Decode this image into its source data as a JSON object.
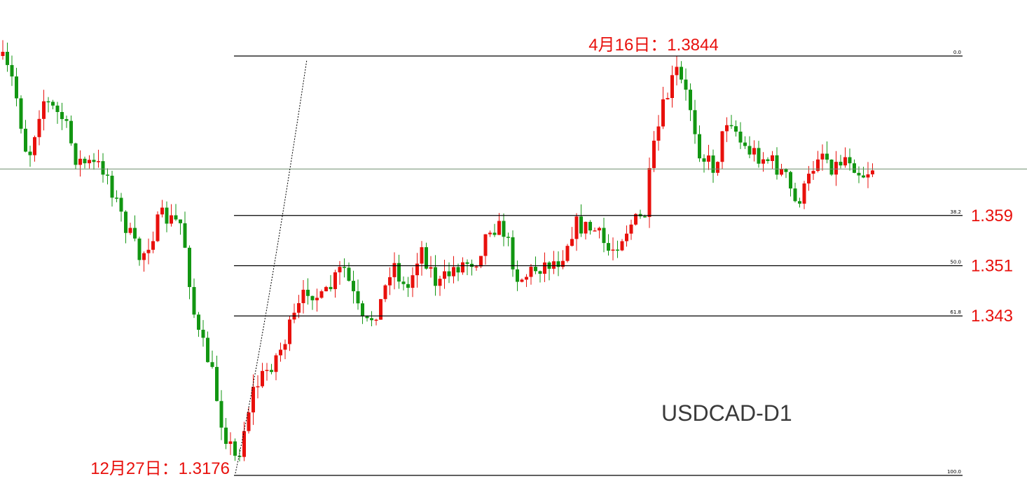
{
  "chart_data": {
    "type": "candlestick",
    "title": "USDCAD-D1",
    "annotations": {
      "high_label": "4月16日：1.3844",
      "low_label": "12月27日：1.3176"
    },
    "current_price": 1.3664,
    "fib_levels": [
      {
        "ratio_label": "0.0",
        "price": 1.3844,
        "price_label": ""
      },
      {
        "ratio_label": "38.2",
        "price": 1.359,
        "price_label": "1.359"
      },
      {
        "ratio_label": "50.0",
        "price": 1.351,
        "price_label": "1.351"
      },
      {
        "ratio_label": "61.8",
        "price": 1.343,
        "price_label": "1.343"
      },
      {
        "ratio_label": "100.0",
        "price": 1.3176,
        "price_label": ""
      }
    ],
    "colors": {
      "up": "#e8100c",
      "down": "#129612",
      "fib": "#000000",
      "label": "#e8100c",
      "current_line": "#6f8f6f"
    }
  }
}
